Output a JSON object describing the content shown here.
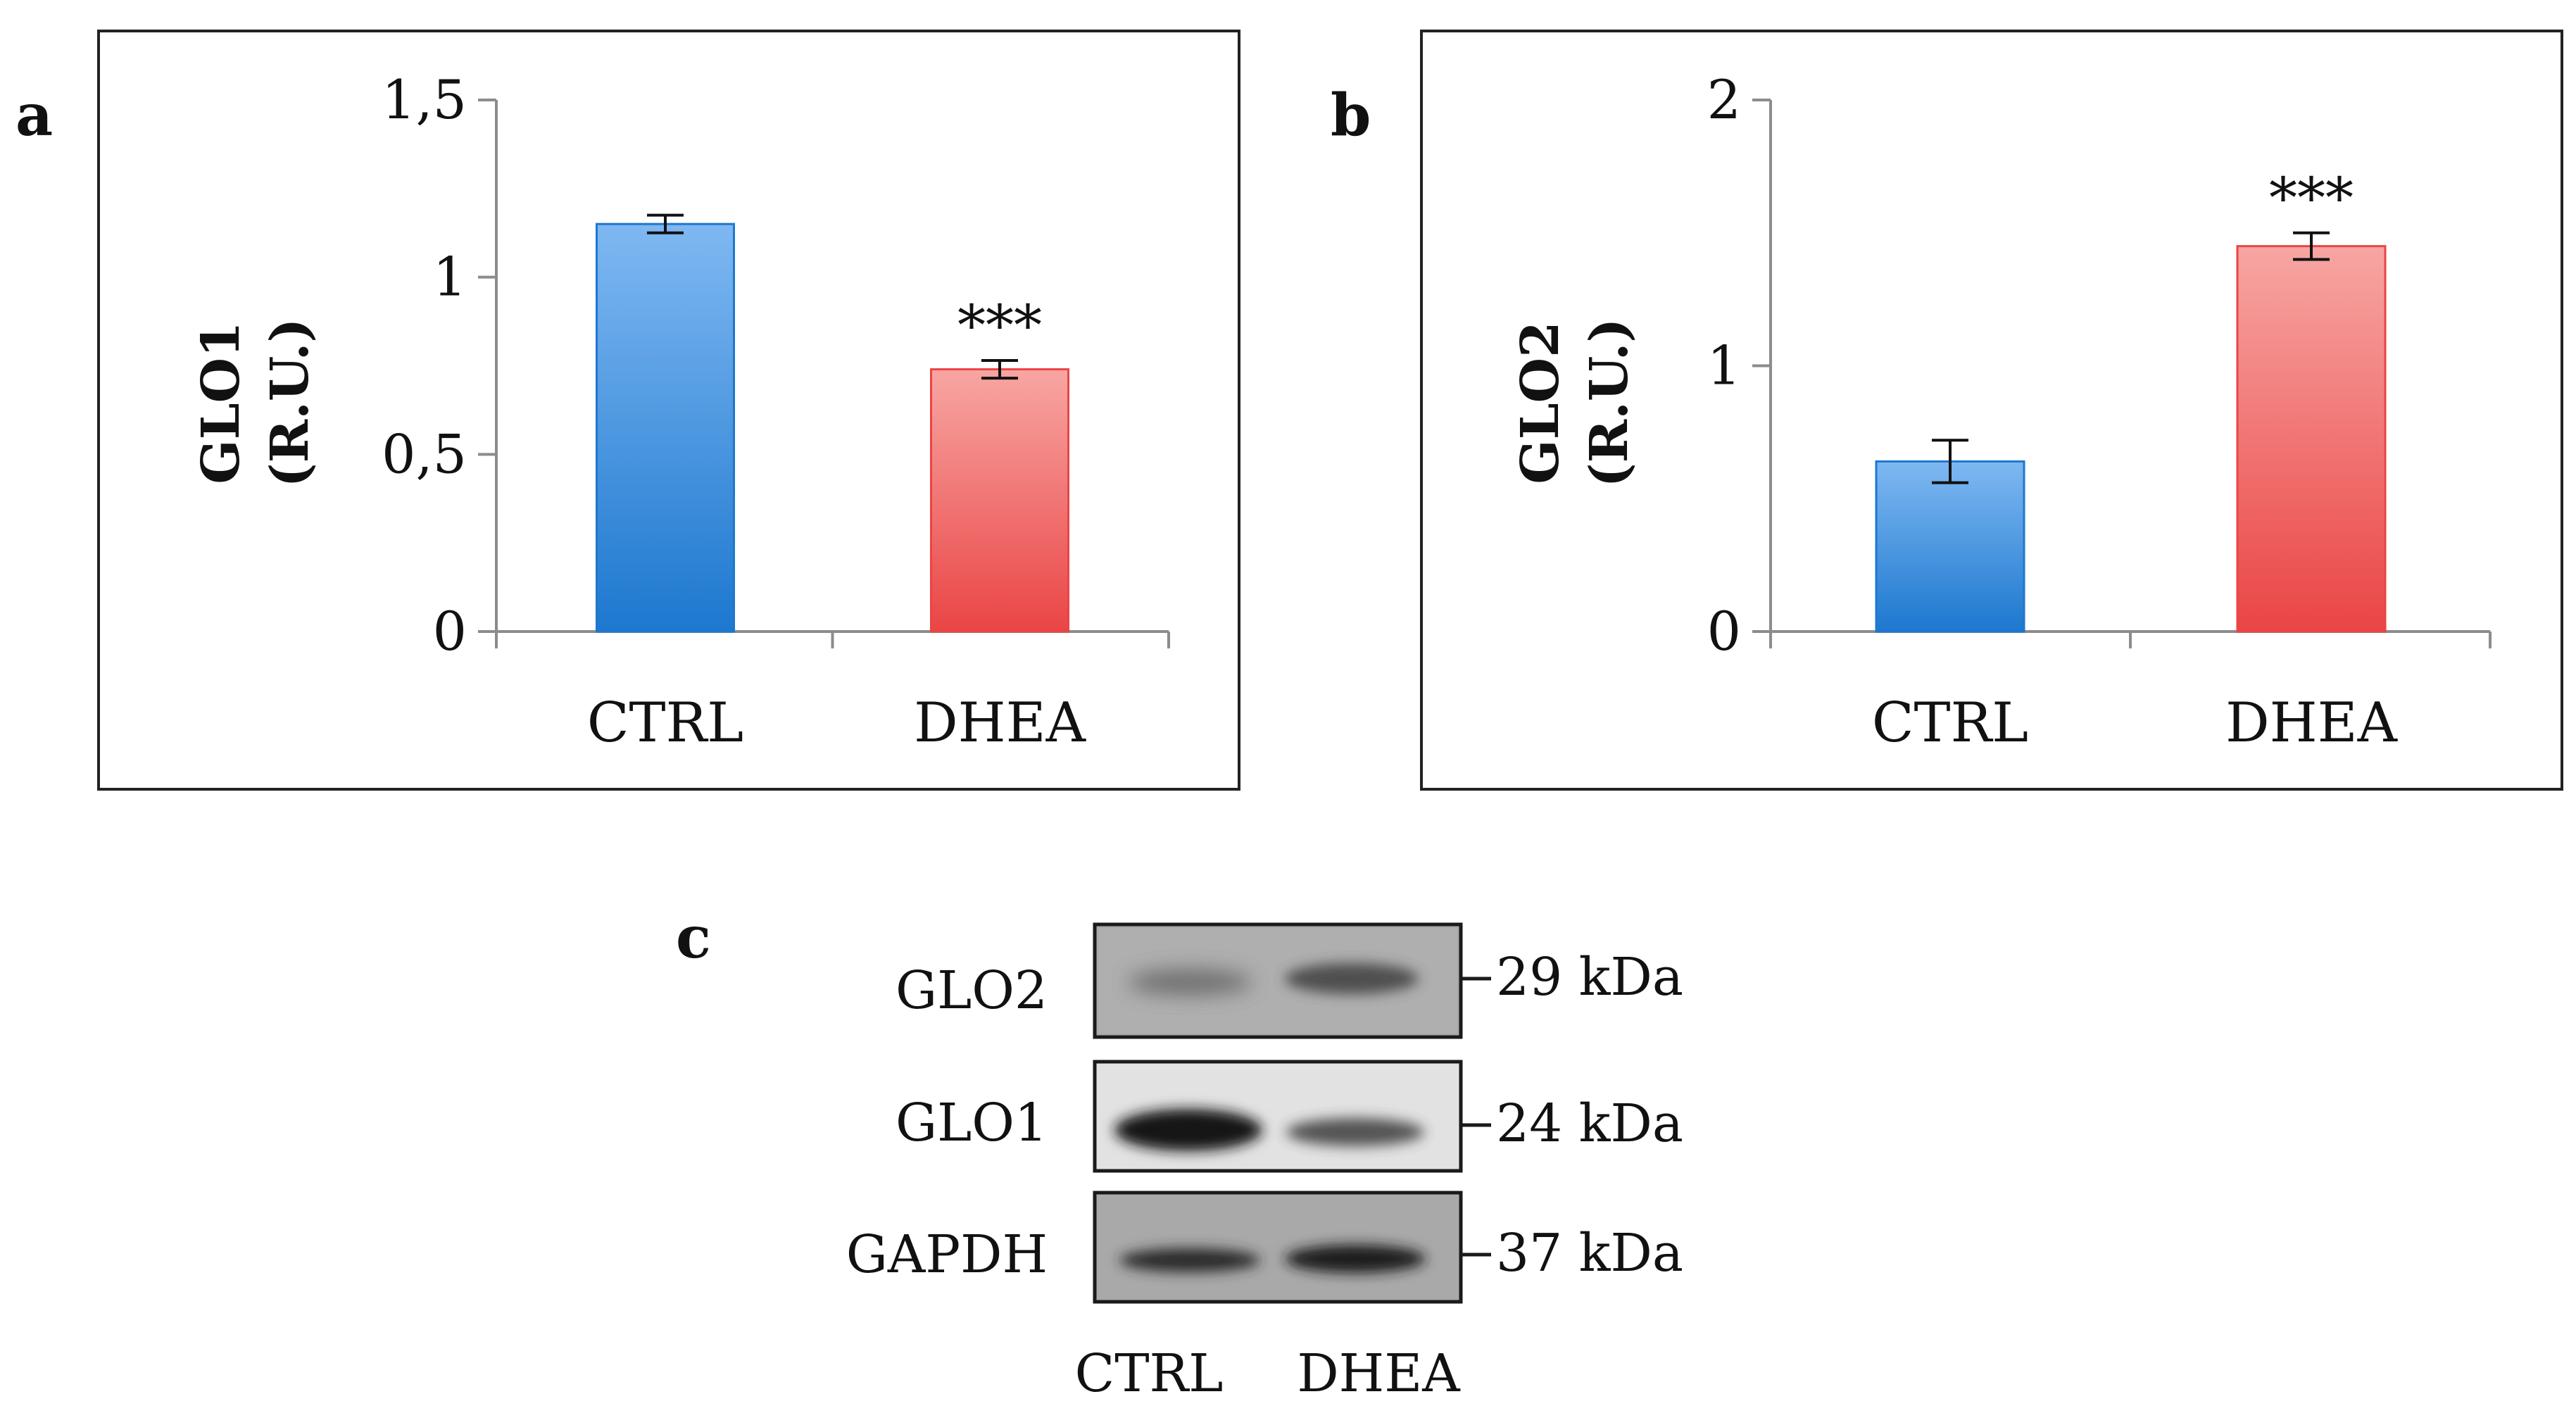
{
  "chart_data": [
    {
      "type": "bar",
      "panel_label": "a",
      "categories": [
        "CTRL",
        "DHEA"
      ],
      "values": [
        1.15,
        0.74
      ],
      "errors": [
        0.025,
        0.025
      ],
      "significance": [
        "",
        "***"
      ],
      "ylim": [
        0,
        1.5
      ],
      "yticks": [
        0,
        0.5,
        1,
        1.5
      ],
      "ytick_labels": [
        "0",
        "0,5",
        "1",
        "1,5"
      ],
      "ylabel_line1": "GLO1",
      "ylabel_line2": "(R.U.)",
      "xlabel": "",
      "grid": false
    },
    {
      "type": "bar",
      "panel_label": "b",
      "categories": [
        "CTRL",
        "DHEA"
      ],
      "values": [
        0.64,
        1.45
      ],
      "errors": [
        0.08,
        0.05
      ],
      "significance": [
        "",
        "***"
      ],
      "ylim": [
        0,
        2
      ],
      "yticks": [
        0,
        1,
        2
      ],
      "ytick_labels": [
        "0",
        "1",
        "2"
      ],
      "ylabel_line1": "GLO2",
      "ylabel_line2": "(R.U.)",
      "xlabel": "",
      "grid": false
    }
  ],
  "blot": {
    "panel_label": "c",
    "rows": [
      {
        "protein": "GLO2",
        "marker": "29 kDa"
      },
      {
        "protein": "GLO1",
        "marker": "24 kDa"
      },
      {
        "protein": "GAPDH",
        "marker": "37 kDa"
      }
    ],
    "lanes": [
      "CTRL",
      "DHEA"
    ]
  },
  "colors": {
    "ctrl_top": "#7fb8f2",
    "ctrl_bottom": "#1d78cf",
    "dhea_top": "#f7a6a3",
    "dhea_bottom": "#ea4545",
    "axis": "#8c8c8c",
    "frame": "#222222"
  }
}
